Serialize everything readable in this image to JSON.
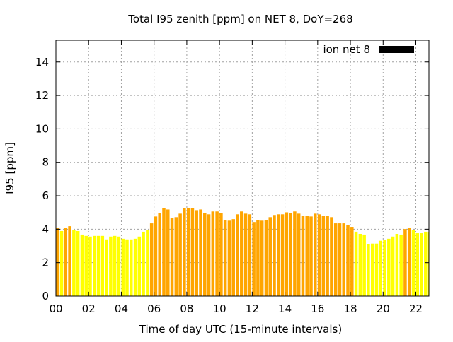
{
  "chart_data": {
    "type": "bar",
    "title": "Total I95 zenith [ppm] on NET 8, DoY=268",
    "xlabel": "Time of day UTC (15-minute intervals)",
    "ylabel": "I95 [ppm]",
    "xlim": [
      0,
      22.8
    ],
    "ylim": [
      0,
      15.3
    ],
    "xticks": [
      0,
      2,
      4,
      6,
      8,
      10,
      12,
      14,
      16,
      18,
      20,
      22
    ],
    "xtick_labels": [
      "00",
      "02",
      "04",
      "06",
      "08",
      "10",
      "12",
      "14",
      "16",
      "18",
      "20",
      "22"
    ],
    "yticks": [
      0,
      2,
      4,
      6,
      8,
      10,
      12,
      14
    ],
    "ytick_labels": [
      "0",
      "2",
      "4",
      "6",
      "8",
      "10",
      "12",
      "14"
    ],
    "grid": true,
    "legend": {
      "placement": "top-right",
      "entries": [
        {
          "label": "ion net 8",
          "color": "#000000"
        }
      ]
    },
    "colors": {
      "low": "#ffff00",
      "high": "#ffa500",
      "threshold": 4
    },
    "x_step_hours": 0.25,
    "values": [
      4.06,
      3.89,
      4.06,
      4.18,
      3.93,
      3.89,
      3.68,
      3.6,
      3.56,
      3.6,
      3.6,
      3.6,
      3.39,
      3.56,
      3.6,
      3.56,
      3.43,
      3.39,
      3.39,
      3.43,
      3.56,
      3.85,
      3.97,
      4.35,
      4.76,
      4.97,
      5.26,
      5.18,
      4.68,
      4.72,
      4.93,
      5.26,
      5.26,
      5.26,
      5.14,
      5.18,
      4.97,
      4.89,
      5.06,
      5.06,
      4.97,
      4.56,
      4.51,
      4.6,
      4.89,
      5.06,
      4.93,
      4.89,
      4.43,
      4.56,
      4.51,
      4.56,
      4.72,
      4.85,
      4.89,
      4.89,
      5.01,
      4.97,
      5.06,
      4.93,
      4.81,
      4.81,
      4.76,
      4.93,
      4.89,
      4.81,
      4.81,
      4.72,
      4.35,
      4.35,
      4.35,
      4.26,
      4.14,
      3.85,
      3.72,
      3.68,
      3.1,
      3.14,
      3.14,
      3.31,
      3.35,
      3.43,
      3.56,
      3.72,
      3.68,
      4.01,
      4.1,
      3.97,
      3.76,
      3.76,
      3.85,
      3.8
    ]
  }
}
